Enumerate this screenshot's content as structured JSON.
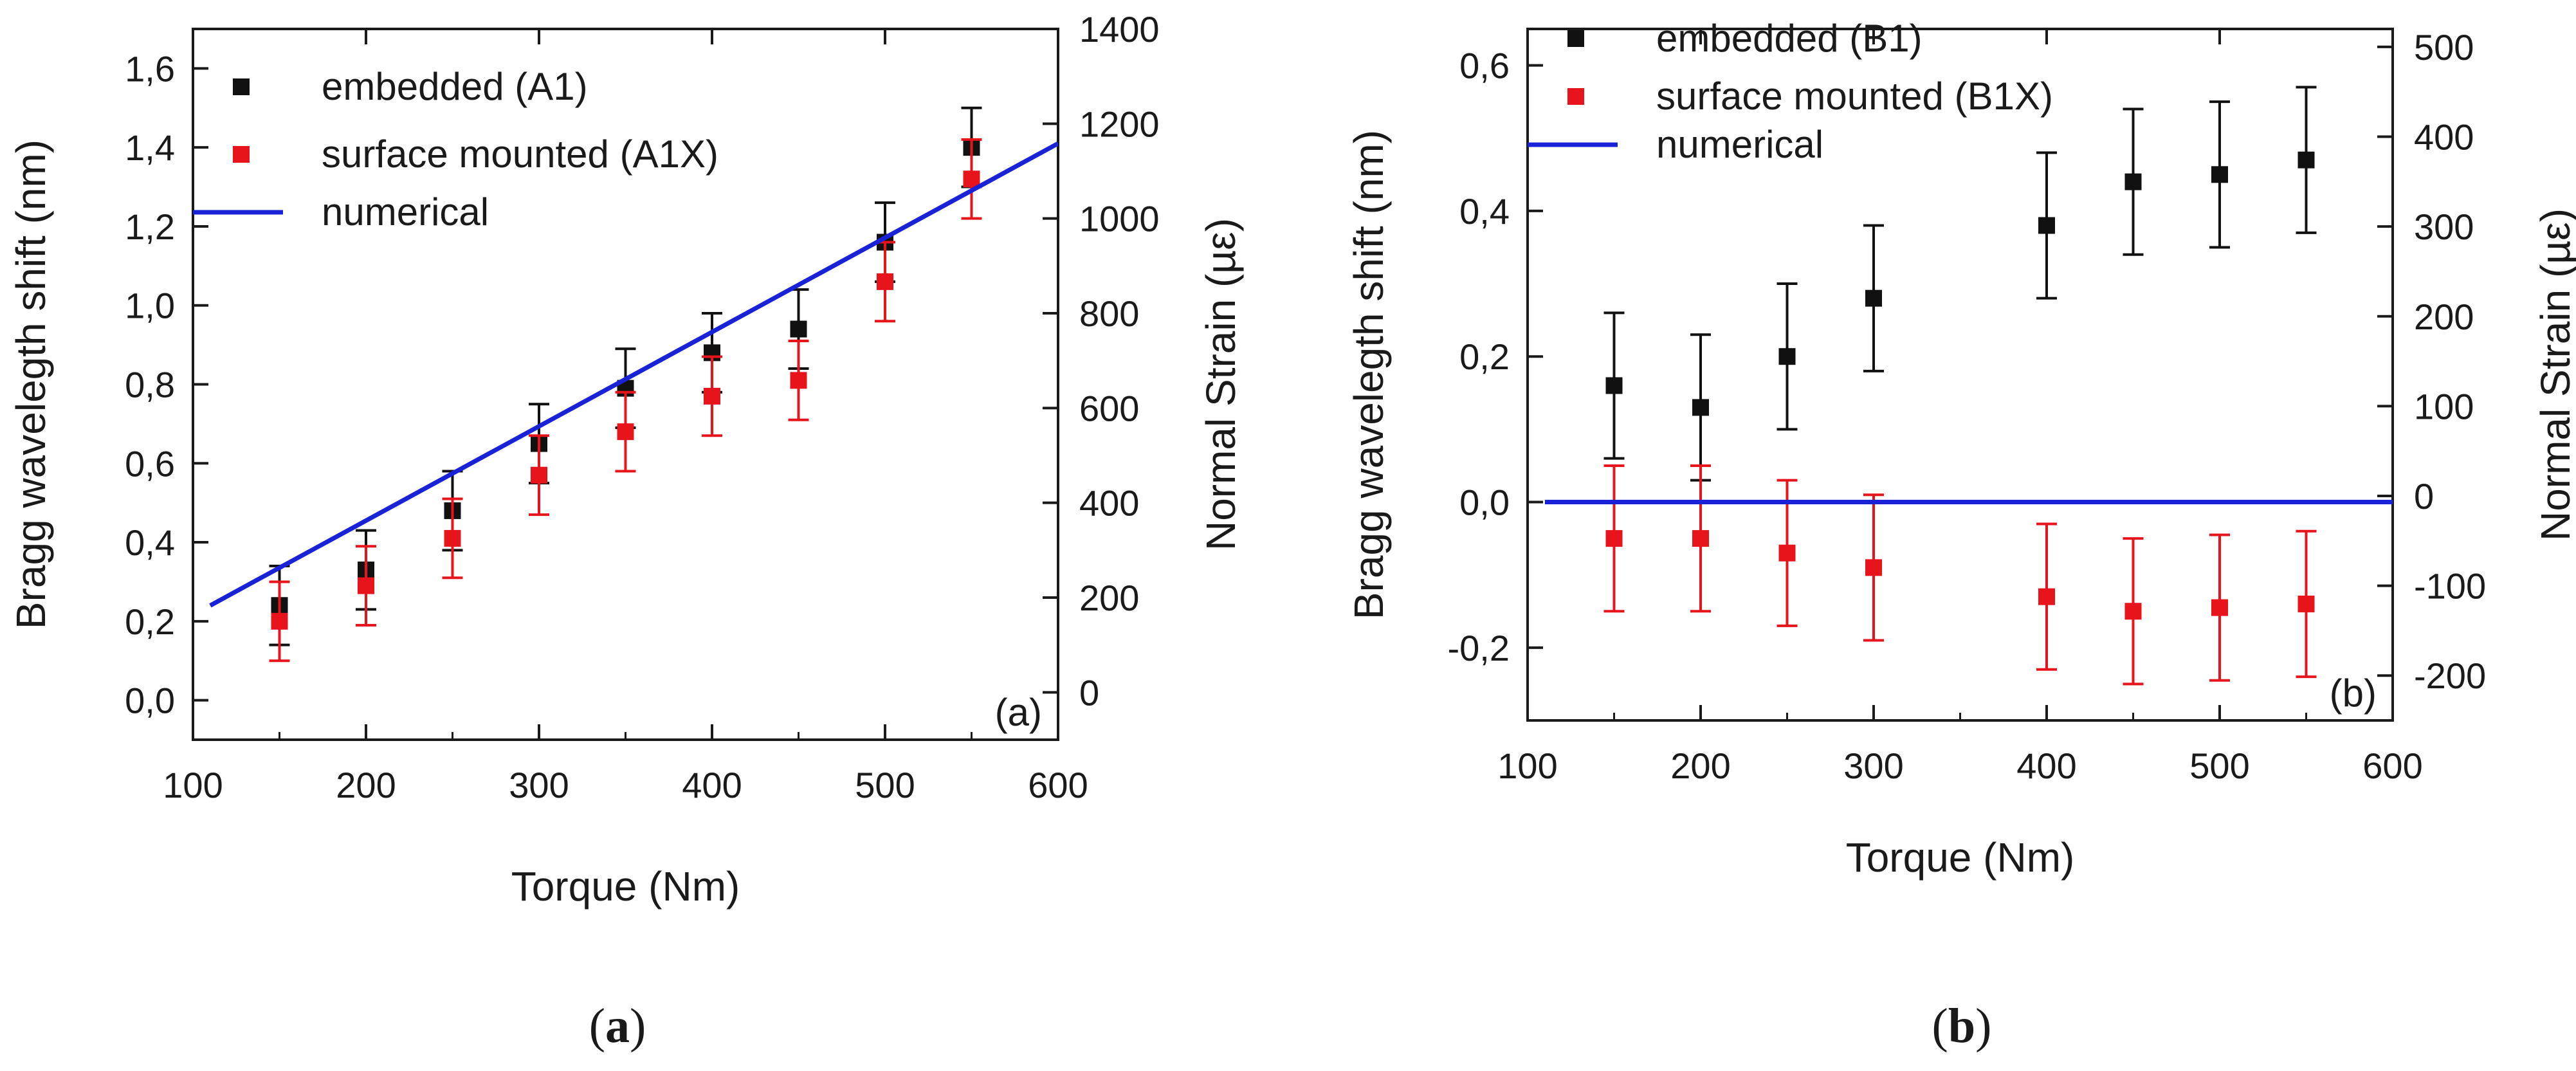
{
  "chart_data": [
    {
      "type": "scatter",
      "panel": "a",
      "xlabel": "Torque (Nm)",
      "ylabel": "Bragg wavelegth shift (nm)",
      "y2label": "Normal Strain (µε)",
      "xlim": [
        100,
        600
      ],
      "ylim": [
        -0.1,
        1.7
      ],
      "y2lim": [
        -100,
        1400
      ],
      "xticks": [
        "100",
        "200",
        "300",
        "400",
        "500",
        "600"
      ],
      "xtick_values": [
        100,
        200,
        300,
        400,
        500,
        600
      ],
      "yticks": [
        "0,0",
        "0,2",
        "0,4",
        "0,6",
        "0,8",
        "1,0",
        "1,2",
        "1,4",
        "1,6"
      ],
      "ytick_values": [
        0.0,
        0.2,
        0.4,
        0.6,
        0.8,
        1.0,
        1.2,
        1.4,
        1.6
      ],
      "y2ticks": [
        "0",
        "200",
        "400",
        "600",
        "800",
        "1000",
        "1200",
        "1400"
      ],
      "y2tick_values": [
        0,
        200,
        400,
        600,
        800,
        1000,
        1200,
        1400
      ],
      "legend_position": "top-left",
      "series": [
        {
          "name": "embedded (A1)",
          "color": "#111111",
          "kind": "points",
          "x": [
            150,
            200,
            250,
            300,
            350,
            400,
            450,
            500,
            550
          ],
          "values": [
            0.24,
            0.33,
            0.48,
            0.65,
            0.79,
            0.88,
            0.94,
            1.16,
            1.4
          ],
          "error": 0.1
        },
        {
          "name": "surface mounted (A1X)",
          "color": "#e8141b",
          "kind": "points",
          "x": [
            150,
            200,
            250,
            300,
            350,
            400,
            450,
            500,
            550
          ],
          "values": [
            0.2,
            0.29,
            0.41,
            0.57,
            0.68,
            0.77,
            0.81,
            1.06,
            1.32
          ],
          "error": 0.1
        },
        {
          "name": "numerical",
          "color": "#1a22d8",
          "kind": "line",
          "x": [
            110,
            600
          ],
          "values": [
            0.24,
            1.41
          ]
        }
      ],
      "panel_label": "(a)",
      "caption": "a"
    },
    {
      "type": "scatter",
      "panel": "b",
      "xlabel": "Torque (Nm)",
      "ylabel": "Bragg wavelegth shift (nm)",
      "y2label": "Normal Strain (µε)",
      "xlim": [
        100,
        600
      ],
      "ylim": [
        -0.3,
        0.65
      ],
      "y2lim": [
        -250,
        520
      ],
      "xticks": [
        "100",
        "200",
        "300",
        "400",
        "500",
        "600"
      ],
      "xtick_values": [
        100,
        200,
        300,
        400,
        500,
        600
      ],
      "yticks": [
        "-0,2",
        "0,0",
        "0,2",
        "0,4",
        "0,6"
      ],
      "ytick_values": [
        -0.2,
        0.0,
        0.2,
        0.4,
        0.6
      ],
      "y2ticks": [
        "-200",
        "-100",
        "0",
        "100",
        "200",
        "300",
        "400",
        "500"
      ],
      "y2tick_values": [
        -200,
        -100,
        0,
        100,
        200,
        300,
        400,
        500
      ],
      "legend_position": "top-left",
      "series": [
        {
          "name": "embedded (B1)",
          "color": "#111111",
          "kind": "points",
          "x": [
            150,
            200,
            250,
            300,
            400,
            450,
            500,
            550
          ],
          "values": [
            0.16,
            0.13,
            0.2,
            0.28,
            0.38,
            0.44,
            0.45,
            0.47
          ],
          "error": 0.1
        },
        {
          "name": "surface mounted (B1X)",
          "color": "#e8141b",
          "kind": "points",
          "x": [
            150,
            200,
            250,
            300,
            400,
            450,
            500,
            550
          ],
          "values": [
            -0.05,
            -0.05,
            -0.07,
            -0.09,
            -0.13,
            -0.15,
            -0.145,
            -0.14
          ],
          "error": 0.1
        },
        {
          "name": "numerical",
          "color": "#1a22d8",
          "kind": "line",
          "x": [
            110,
            600
          ],
          "values": [
            0.0,
            0.0
          ]
        }
      ],
      "panel_label": "(b)",
      "caption": "b"
    }
  ]
}
